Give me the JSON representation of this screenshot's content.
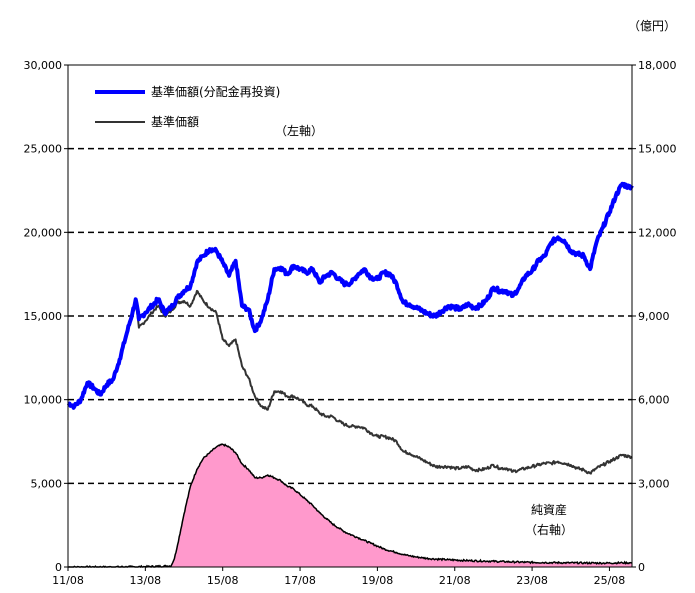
{
  "chart_data": {
    "type": "line",
    "unit_right": "（億円）",
    "x_ticks": [
      "11/08",
      "13/08",
      "15/08",
      "17/08",
      "19/08",
      "21/08",
      "23/08",
      "25/08"
    ],
    "x_range": [
      "2011-08",
      "2026-03"
    ],
    "y_left": {
      "range": [
        0,
        30000
      ],
      "ticks": [
        "0",
        "5,000",
        "10,000",
        "15,000",
        "20,000",
        "25,000",
        "30,000"
      ]
    },
    "y_right": {
      "range": [
        0,
        18000
      ],
      "ticks": [
        "0",
        "3,000",
        "6,000",
        "9,000",
        "12,000",
        "15,000",
        "18,000"
      ]
    },
    "grid": "dashed horizontal at left-axis 5,000 intervals",
    "legend_note_left": "（左軸）",
    "legend_note_right_line1": "純資産",
    "legend_note_right_line2": "（右軸）",
    "series": [
      {
        "name": "基準価額(分配金再投資)",
        "axis": "left",
        "color": "#0000ff",
        "points": [
          [
            "2011-08",
            9800
          ],
          [
            "2011-10",
            9600
          ],
          [
            "2011-12",
            10000
          ],
          [
            "2012-02",
            11000
          ],
          [
            "2012-04",
            10700
          ],
          [
            "2012-06",
            10300
          ],
          [
            "2012-08",
            10900
          ],
          [
            "2012-10",
            11200
          ],
          [
            "2012-12",
            12400
          ],
          [
            "2013-02",
            13800
          ],
          [
            "2013-04",
            15200
          ],
          [
            "2013-05",
            16000
          ],
          [
            "2013-06",
            14800
          ],
          [
            "2013-08",
            15200
          ],
          [
            "2013-10",
            15600
          ],
          [
            "2013-12",
            16000
          ],
          [
            "2014-02",
            15200
          ],
          [
            "2014-04",
            15500
          ],
          [
            "2014-06",
            16100
          ],
          [
            "2014-08",
            16500
          ],
          [
            "2014-10",
            16800
          ],
          [
            "2014-12",
            18200
          ],
          [
            "2015-02",
            18600
          ],
          [
            "2015-04",
            19000
          ],
          [
            "2015-06",
            18900
          ],
          [
            "2015-08",
            18200
          ],
          [
            "2015-10",
            17400
          ],
          [
            "2015-12",
            18300
          ],
          [
            "2016-02",
            15600
          ],
          [
            "2016-04",
            15400
          ],
          [
            "2016-06",
            14100
          ],
          [
            "2016-08",
            14800
          ],
          [
            "2016-10",
            16000
          ],
          [
            "2016-12",
            17800
          ],
          [
            "2017-02",
            17900
          ],
          [
            "2017-04",
            17500
          ],
          [
            "2017-06",
            18000
          ],
          [
            "2017-08",
            17800
          ],
          [
            "2017-10",
            17600
          ],
          [
            "2017-12",
            17800
          ],
          [
            "2018-02",
            17000
          ],
          [
            "2018-04",
            17400
          ],
          [
            "2018-06",
            17600
          ],
          [
            "2018-08",
            17200
          ],
          [
            "2018-10",
            16900
          ],
          [
            "2018-12",
            17000
          ],
          [
            "2019-02",
            17500
          ],
          [
            "2019-04",
            17800
          ],
          [
            "2019-06",
            17300
          ],
          [
            "2019-08",
            17200
          ],
          [
            "2019-10",
            17600
          ],
          [
            "2019-12",
            17500
          ],
          [
            "2020-02",
            16900
          ],
          [
            "2020-04",
            15800
          ],
          [
            "2020-06",
            15700
          ],
          [
            "2020-08",
            15500
          ],
          [
            "2020-10",
            15300
          ],
          [
            "2020-12",
            15100
          ],
          [
            "2021-02",
            15000
          ],
          [
            "2021-04",
            15300
          ],
          [
            "2021-06",
            15600
          ],
          [
            "2021-08",
            15500
          ],
          [
            "2021-10",
            15400
          ],
          [
            "2021-12",
            15700
          ],
          [
            "2022-02",
            15500
          ],
          [
            "2022-04",
            15600
          ],
          [
            "2022-06",
            16000
          ],
          [
            "2022-08",
            16700
          ],
          [
            "2022-10",
            16500
          ],
          [
            "2022-12",
            16500
          ],
          [
            "2023-02",
            16200
          ],
          [
            "2023-04",
            16700
          ],
          [
            "2023-06",
            17400
          ],
          [
            "2023-08",
            17700
          ],
          [
            "2023-10",
            18300
          ],
          [
            "2023-12",
            18600
          ],
          [
            "2024-02",
            19400
          ],
          [
            "2024-04",
            19700
          ],
          [
            "2024-06",
            19500
          ],
          [
            "2024-08",
            18900
          ],
          [
            "2024-10",
            18700
          ],
          [
            "2024-12",
            18600
          ],
          [
            "2025-02",
            17800
          ],
          [
            "2025-04",
            19400
          ],
          [
            "2025-06",
            20300
          ],
          [
            "2025-08",
            21200
          ],
          [
            "2025-10",
            22200
          ],
          [
            "2025-12",
            22900
          ],
          [
            "2026-02",
            22700
          ],
          [
            "2026-03",
            22800
          ]
        ]
      },
      {
        "name": "基準価額",
        "axis": "left",
        "color": "#333333",
        "points": [
          [
            "2011-08",
            9800
          ],
          [
            "2011-10",
            9600
          ],
          [
            "2011-12",
            10000
          ],
          [
            "2012-02",
            11000
          ],
          [
            "2012-04",
            10700
          ],
          [
            "2012-06",
            10300
          ],
          [
            "2012-08",
            10900
          ],
          [
            "2012-10",
            11200
          ],
          [
            "2012-12",
            12400
          ],
          [
            "2013-02",
            13800
          ],
          [
            "2013-04",
            15000
          ],
          [
            "2013-05",
            15800
          ],
          [
            "2013-06",
            14300
          ],
          [
            "2013-08",
            14700
          ],
          [
            "2013-10",
            15200
          ],
          [
            "2013-12",
            15600
          ],
          [
            "2014-02",
            15000
          ],
          [
            "2014-04",
            15300
          ],
          [
            "2014-06",
            15800
          ],
          [
            "2014-08",
            15900
          ],
          [
            "2014-10",
            15600
          ],
          [
            "2014-12",
            16500
          ],
          [
            "2015-02",
            15900
          ],
          [
            "2015-04",
            15500
          ],
          [
            "2015-06",
            15200
          ],
          [
            "2015-08",
            13600
          ],
          [
            "2015-10",
            13200
          ],
          [
            "2015-12",
            13600
          ],
          [
            "2016-02",
            12000
          ],
          [
            "2016-04",
            11300
          ],
          [
            "2016-06",
            10200
          ],
          [
            "2016-08",
            9600
          ],
          [
            "2016-10",
            9400
          ],
          [
            "2016-12",
            10500
          ],
          [
            "2017-02",
            10500
          ],
          [
            "2017-04",
            10200
          ],
          [
            "2017-06",
            10200
          ],
          [
            "2017-08",
            10000
          ],
          [
            "2017-10",
            9700
          ],
          [
            "2017-12",
            9600
          ],
          [
            "2018-02",
            9200
          ],
          [
            "2018-04",
            9000
          ],
          [
            "2018-06",
            9000
          ],
          [
            "2018-08",
            8700
          ],
          [
            "2018-10",
            8500
          ],
          [
            "2018-12",
            8400
          ],
          [
            "2019-02",
            8400
          ],
          [
            "2019-04",
            8300
          ],
          [
            "2019-06",
            8000
          ],
          [
            "2019-08",
            7800
          ],
          [
            "2019-10",
            7800
          ],
          [
            "2019-12",
            7700
          ],
          [
            "2020-02",
            7500
          ],
          [
            "2020-04",
            6900
          ],
          [
            "2020-06",
            6800
          ],
          [
            "2020-08",
            6600
          ],
          [
            "2020-10",
            6400
          ],
          [
            "2020-12",
            6200
          ],
          [
            "2021-02",
            6000
          ],
          [
            "2021-04",
            6000
          ],
          [
            "2021-06",
            6000
          ],
          [
            "2021-08",
            5900
          ],
          [
            "2021-10",
            5900
          ],
          [
            "2021-12",
            6000
          ],
          [
            "2022-02",
            5800
          ],
          [
            "2022-04",
            5800
          ],
          [
            "2022-06",
            5900
          ],
          [
            "2022-08",
            6100
          ],
          [
            "2022-10",
            5900
          ],
          [
            "2022-12",
            5900
          ],
          [
            "2023-02",
            5700
          ],
          [
            "2023-04",
            5800
          ],
          [
            "2023-06",
            5900
          ],
          [
            "2023-08",
            6000
          ],
          [
            "2023-10",
            6100
          ],
          [
            "2023-12",
            6200
          ],
          [
            "2024-02",
            6200
          ],
          [
            "2024-04",
            6300
          ],
          [
            "2024-06",
            6200
          ],
          [
            "2024-08",
            6100
          ],
          [
            "2024-10",
            5900
          ],
          [
            "2024-12",
            5800
          ],
          [
            "2025-02",
            5600
          ],
          [
            "2025-04",
            5900
          ],
          [
            "2025-06",
            6100
          ],
          [
            "2025-08",
            6300
          ],
          [
            "2025-10",
            6500
          ],
          [
            "2025-12",
            6700
          ],
          [
            "2026-02",
            6600
          ],
          [
            "2026-03",
            6600
          ]
        ]
      },
      {
        "name": "純資産",
        "axis": "right",
        "type": "area",
        "color": "#ff99cc",
        "points": [
          [
            "2011-08",
            0
          ],
          [
            "2012-08",
            0
          ],
          [
            "2013-08",
            10
          ],
          [
            "2014-04",
            40
          ],
          [
            "2014-05",
            300
          ],
          [
            "2014-06",
            800
          ],
          [
            "2014-08",
            1900
          ],
          [
            "2014-10",
            2900
          ],
          [
            "2014-12",
            3500
          ],
          [
            "2015-02",
            3900
          ],
          [
            "2015-04",
            4100
          ],
          [
            "2015-06",
            4300
          ],
          [
            "2015-08",
            4400
          ],
          [
            "2015-10",
            4300
          ],
          [
            "2015-12",
            4100
          ],
          [
            "2016-02",
            3700
          ],
          [
            "2016-04",
            3500
          ],
          [
            "2016-06",
            3200
          ],
          [
            "2016-08",
            3200
          ],
          [
            "2016-10",
            3300
          ],
          [
            "2016-12",
            3200
          ],
          [
            "2017-02",
            3100
          ],
          [
            "2017-04",
            2900
          ],
          [
            "2017-06",
            2800
          ],
          [
            "2017-08",
            2600
          ],
          [
            "2017-10",
            2400
          ],
          [
            "2017-12",
            2200
          ],
          [
            "2018-02",
            1950
          ],
          [
            "2018-04",
            1750
          ],
          [
            "2018-06",
            1550
          ],
          [
            "2018-08",
            1400
          ],
          [
            "2018-10",
            1250
          ],
          [
            "2018-12",
            1150
          ],
          [
            "2019-02",
            1050
          ],
          [
            "2019-04",
            950
          ],
          [
            "2019-06",
            850
          ],
          [
            "2019-08",
            750
          ],
          [
            "2019-10",
            650
          ],
          [
            "2019-12",
            580
          ],
          [
            "2020-02",
            520
          ],
          [
            "2020-04",
            450
          ],
          [
            "2020-06",
            400
          ],
          [
            "2020-08",
            360
          ],
          [
            "2020-10",
            330
          ],
          [
            "2020-12",
            300
          ],
          [
            "2021-06",
            260
          ],
          [
            "2021-12",
            230
          ],
          [
            "2022-06",
            210
          ],
          [
            "2022-12",
            190
          ],
          [
            "2023-06",
            170
          ],
          [
            "2023-12",
            160
          ],
          [
            "2024-06",
            150
          ],
          [
            "2024-12",
            145
          ],
          [
            "2025-06",
            140
          ],
          [
            "2025-12",
            150
          ],
          [
            "2026-03",
            150
          ]
        ]
      }
    ]
  }
}
